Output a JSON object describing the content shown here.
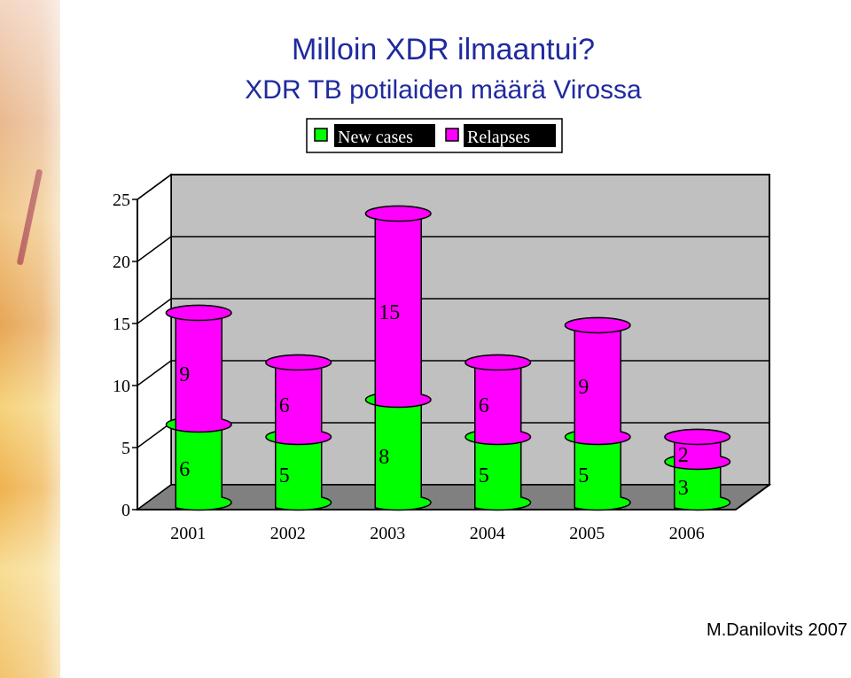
{
  "title": "Milloin XDR ilmaantui?",
  "subtitle": "XDR TB potilaiden määrä Virossa",
  "credit": "M.Danilovits 2007",
  "colors": {
    "new": "#00ff00",
    "relapse": "#ff00ff",
    "wall": "#c0c0c0",
    "floor": "#808080"
  },
  "chart_data": {
    "type": "bar",
    "stacked": true,
    "categories": [
      "2001",
      "2002",
      "2003",
      "2004",
      "2005",
      "2006"
    ],
    "series": [
      {
        "name": "New cases",
        "values": [
          6,
          5,
          8,
          5,
          5,
          3
        ]
      },
      {
        "name": "Relapses",
        "values": [
          9,
          6,
          15,
          6,
          9,
          2
        ]
      }
    ],
    "y_ticks": [
      "0",
      "5",
      "10",
      "15",
      "20",
      "25"
    ],
    "ylim": [
      0,
      25
    ],
    "legend_position": "top"
  }
}
